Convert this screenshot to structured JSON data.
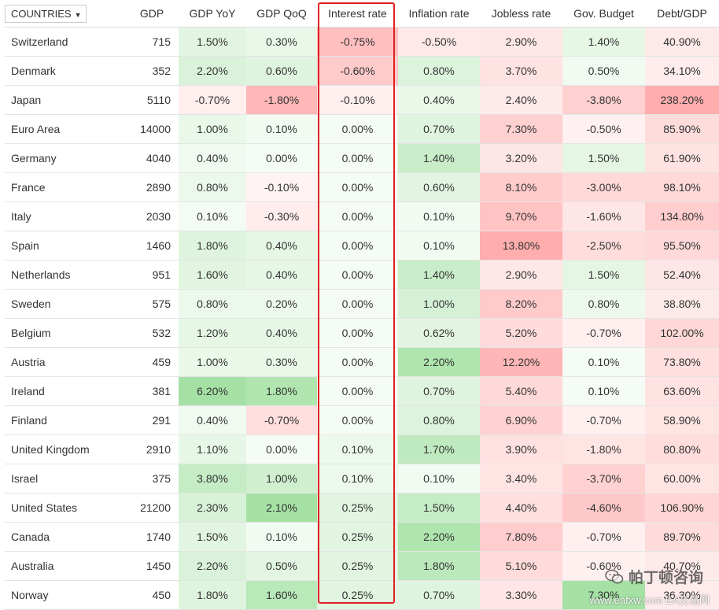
{
  "header": {
    "countries_label": "COUNTRIES",
    "dropdown_icon": "caret-down-icon",
    "columns": [
      "GDP",
      "GDP YoY",
      "GDP QoQ",
      "Interest rate",
      "Inflation rate",
      "Jobless rate",
      "Gov. Budget",
      "Debt/GDP"
    ]
  },
  "colors": {
    "positive": "#40c040",
    "negative": "#ff5050",
    "highlight_border": "#e02020"
  },
  "rows": [
    {
      "country": "Switzerland",
      "gdp": "715",
      "gdp_yoy": "1.50%",
      "gdp_qoq": "0.30%",
      "interest_rate": "-0.75%",
      "inflation_rate": "-0.50%",
      "jobless_rate": "2.90%",
      "gov_budget": "1.40%",
      "debt_gdp": "40.90%"
    },
    {
      "country": "Denmark",
      "gdp": "352",
      "gdp_yoy": "2.20%",
      "gdp_qoq": "0.60%",
      "interest_rate": "-0.60%",
      "inflation_rate": "0.80%",
      "jobless_rate": "3.70%",
      "gov_budget": "0.50%",
      "debt_gdp": "34.10%"
    },
    {
      "country": "Japan",
      "gdp": "5110",
      "gdp_yoy": "-0.70%",
      "gdp_qoq": "-1.80%",
      "interest_rate": "-0.10%",
      "inflation_rate": "0.40%",
      "jobless_rate": "2.40%",
      "gov_budget": "-3.80%",
      "debt_gdp": "238.20%"
    },
    {
      "country": "Euro Area",
      "gdp": "14000",
      "gdp_yoy": "1.00%",
      "gdp_qoq": "0.10%",
      "interest_rate": "0.00%",
      "inflation_rate": "0.70%",
      "jobless_rate": "7.30%",
      "gov_budget": "-0.50%",
      "debt_gdp": "85.90%"
    },
    {
      "country": "Germany",
      "gdp": "4040",
      "gdp_yoy": "0.40%",
      "gdp_qoq": "0.00%",
      "interest_rate": "0.00%",
      "inflation_rate": "1.40%",
      "jobless_rate": "3.20%",
      "gov_budget": "1.50%",
      "debt_gdp": "61.90%"
    },
    {
      "country": "France",
      "gdp": "2890",
      "gdp_yoy": "0.80%",
      "gdp_qoq": "-0.10%",
      "interest_rate": "0.00%",
      "inflation_rate": "0.60%",
      "jobless_rate": "8.10%",
      "gov_budget": "-3.00%",
      "debt_gdp": "98.10%"
    },
    {
      "country": "Italy",
      "gdp": "2030",
      "gdp_yoy": "0.10%",
      "gdp_qoq": "-0.30%",
      "interest_rate": "0.00%",
      "inflation_rate": "0.10%",
      "jobless_rate": "9.70%",
      "gov_budget": "-1.60%",
      "debt_gdp": "134.80%"
    },
    {
      "country": "Spain",
      "gdp": "1460",
      "gdp_yoy": "1.80%",
      "gdp_qoq": "0.40%",
      "interest_rate": "0.00%",
      "inflation_rate": "0.10%",
      "jobless_rate": "13.80%",
      "gov_budget": "-2.50%",
      "debt_gdp": "95.50%"
    },
    {
      "country": "Netherlands",
      "gdp": "951",
      "gdp_yoy": "1.60%",
      "gdp_qoq": "0.40%",
      "interest_rate": "0.00%",
      "inflation_rate": "1.40%",
      "jobless_rate": "2.90%",
      "gov_budget": "1.50%",
      "debt_gdp": "52.40%"
    },
    {
      "country": "Sweden",
      "gdp": "575",
      "gdp_yoy": "0.80%",
      "gdp_qoq": "0.20%",
      "interest_rate": "0.00%",
      "inflation_rate": "1.00%",
      "jobless_rate": "8.20%",
      "gov_budget": "0.80%",
      "debt_gdp": "38.80%"
    },
    {
      "country": "Belgium",
      "gdp": "532",
      "gdp_yoy": "1.20%",
      "gdp_qoq": "0.40%",
      "interest_rate": "0.00%",
      "inflation_rate": "0.62%",
      "jobless_rate": "5.20%",
      "gov_budget": "-0.70%",
      "debt_gdp": "102.00%"
    },
    {
      "country": "Austria",
      "gdp": "459",
      "gdp_yoy": "1.00%",
      "gdp_qoq": "0.30%",
      "interest_rate": "0.00%",
      "inflation_rate": "2.20%",
      "jobless_rate": "12.20%",
      "gov_budget": "0.10%",
      "debt_gdp": "73.80%"
    },
    {
      "country": "Ireland",
      "gdp": "381",
      "gdp_yoy": "6.20%",
      "gdp_qoq": "1.80%",
      "interest_rate": "0.00%",
      "inflation_rate": "0.70%",
      "jobless_rate": "5.40%",
      "gov_budget": "0.10%",
      "debt_gdp": "63.60%"
    },
    {
      "country": "Finland",
      "gdp": "291",
      "gdp_yoy": "0.40%",
      "gdp_qoq": "-0.70%",
      "interest_rate": "0.00%",
      "inflation_rate": "0.80%",
      "jobless_rate": "6.90%",
      "gov_budget": "-0.70%",
      "debt_gdp": "58.90%"
    },
    {
      "country": "United Kingdom",
      "gdp": "2910",
      "gdp_yoy": "1.10%",
      "gdp_qoq": "0.00%",
      "interest_rate": "0.10%",
      "inflation_rate": "1.70%",
      "jobless_rate": "3.90%",
      "gov_budget": "-1.80%",
      "debt_gdp": "80.80%"
    },
    {
      "country": "Israel",
      "gdp": "375",
      "gdp_yoy": "3.80%",
      "gdp_qoq": "1.00%",
      "interest_rate": "0.10%",
      "inflation_rate": "0.10%",
      "jobless_rate": "3.40%",
      "gov_budget": "-3.70%",
      "debt_gdp": "60.00%"
    },
    {
      "country": "United States",
      "gdp": "21200",
      "gdp_yoy": "2.30%",
      "gdp_qoq": "2.10%",
      "interest_rate": "0.25%",
      "inflation_rate": "1.50%",
      "jobless_rate": "4.40%",
      "gov_budget": "-4.60%",
      "debt_gdp": "106.90%"
    },
    {
      "country": "Canada",
      "gdp": "1740",
      "gdp_yoy": "1.50%",
      "gdp_qoq": "0.10%",
      "interest_rate": "0.25%",
      "inflation_rate": "2.20%",
      "jobless_rate": "7.80%",
      "gov_budget": "-0.70%",
      "debt_gdp": "89.70%"
    },
    {
      "country": "Australia",
      "gdp": "1450",
      "gdp_yoy": "2.20%",
      "gdp_qoq": "0.50%",
      "interest_rate": "0.25%",
      "inflation_rate": "1.80%",
      "jobless_rate": "5.10%",
      "gov_budget": "-0.60%",
      "debt_gdp": "40.70%"
    },
    {
      "country": "Norway",
      "gdp": "450",
      "gdp_yoy": "1.80%",
      "gdp_qoq": "1.60%",
      "interest_rate": "0.25%",
      "inflation_rate": "0.70%",
      "jobless_rate": "3.30%",
      "gov_budget": "7.30%",
      "debt_gdp": "36.30%"
    }
  ],
  "watermark": {
    "icon": "wechat-logo-icon",
    "title": "帕丁顿咨询",
    "site": "www.eafxw.com EA交易网"
  }
}
